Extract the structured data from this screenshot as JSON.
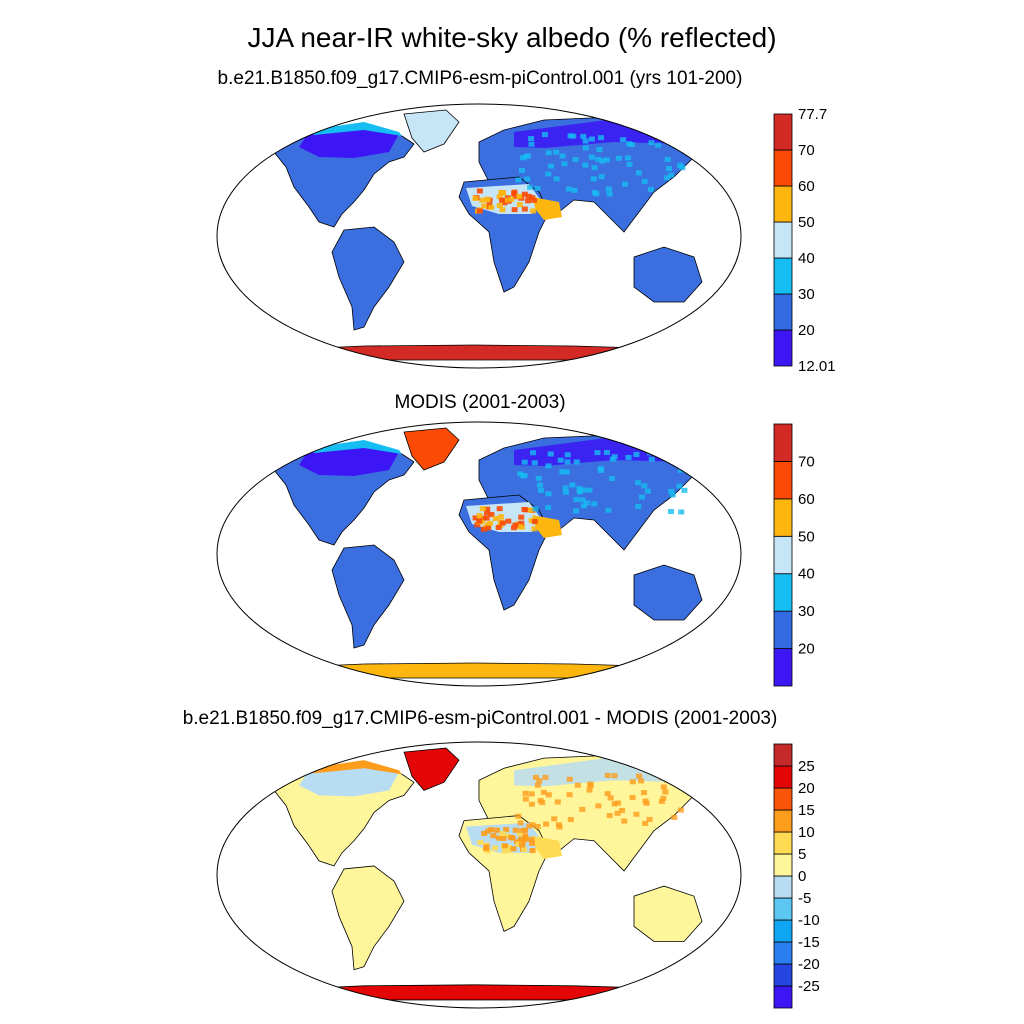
{
  "title": "JJA near-IR white-sky albedo (% reflected)",
  "panels": [
    {
      "subtitle": "b.e21.B1850.f09_g17.CMIP6-esm-piControl.001 (yrs 101-200)",
      "colorbar": {
        "colors": [
          "#3c16f5",
          "#3369e3",
          "#16bdf2",
          "#c6e5f6",
          "#fdb60e",
          "#fb4a05",
          "#d42a26"
        ],
        "labels": [
          "12.01",
          "20",
          "30",
          "40",
          "50",
          "60",
          "70",
          "77.7"
        ],
        "label_mode": "edges"
      },
      "regions": {
        "land": "#3b6fe0",
        "high_lat": "#3c16f5",
        "desert": "#c6e5f6",
        "desert_hot": "#fdb60e",
        "peak": "#fb4a05",
        "greenland": "#c6e5f6",
        "antarctica": "#d42a26",
        "arctic_edge": "#16bdf2"
      }
    },
    {
      "subtitle": "MODIS (2001-2003)",
      "colorbar": {
        "colors": [
          "#3c16f5",
          "#3369e3",
          "#16bdf2",
          "#c6e5f6",
          "#fdb60e",
          "#fb4a05",
          "#d42a26"
        ],
        "labels": [
          "20",
          "30",
          "40",
          "50",
          "60",
          "70"
        ],
        "label_mode": "inner"
      },
      "regions": {
        "land": "#3b6fe0",
        "high_lat": "#3c16f5",
        "desert": "#c6e5f6",
        "desert_hot": "#fdb60e",
        "peak": "#fb4a05",
        "greenland": "#fb4a05",
        "antarctica": "#fdb60e",
        "arctic_edge": "#16bdf2"
      }
    },
    {
      "subtitle": "b.e21.B1850.f09_g17.CMIP6-esm-piControl.001 - MODIS (2001-2003)",
      "colorbar": {
        "colors": [
          "#3c16f5",
          "#2546e0",
          "#2a7ef0",
          "#0ea6f2",
          "#5bc7f2",
          "#b8dcf2",
          "#fff59a",
          "#fedb52",
          "#fe9c1b",
          "#f9540a",
          "#e40606",
          "#c42a2a"
        ],
        "labels": [
          "-25",
          "-20",
          "-15",
          "-10",
          "-5",
          "0",
          "5",
          "10",
          "15",
          "20",
          "25"
        ],
        "label_mode": "inner"
      },
      "regions": {
        "land": "#fff59a",
        "high_lat": "#b8dcf2",
        "desert": "#b8dcf2",
        "desert_hot": "#fedb52",
        "peak": "#fe9c1b",
        "greenland": "#e40606",
        "antarctica": "#e40606",
        "arctic_edge": "#fe9c1b"
      }
    }
  ]
}
